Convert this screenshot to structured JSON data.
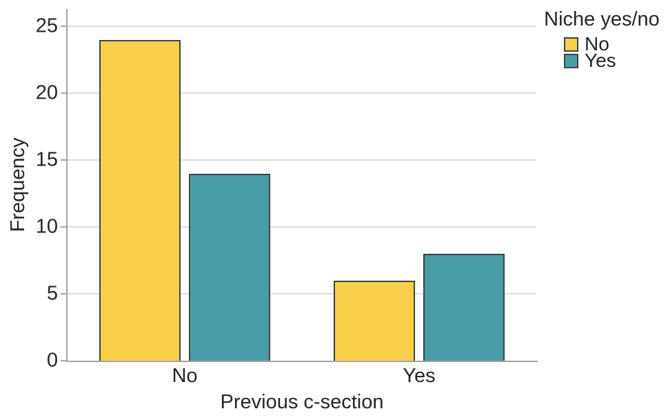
{
  "chart_data": {
    "type": "bar",
    "title": "",
    "xlabel": "Previous c-section",
    "ylabel": "Frequency",
    "categories": [
      "No",
      "Yes"
    ],
    "series": [
      {
        "name": "No",
        "color": "#F9D04C",
        "values": [
          24,
          6
        ]
      },
      {
        "name": "Yes",
        "color": "#4A9DA8",
        "values": [
          14,
          8
        ]
      }
    ],
    "legend": {
      "title": "Niche yes/no",
      "position": "top-right-outside"
    },
    "yaxis": {
      "ticks": [
        0,
        5,
        10,
        15,
        20,
        25
      ],
      "max": 26.3
    },
    "xlim_categories": 2,
    "grid": true,
    "bar_border_color": "#3e4347",
    "axis_color": "#a3a3a3",
    "grid_color": "#dcdcdc"
  }
}
